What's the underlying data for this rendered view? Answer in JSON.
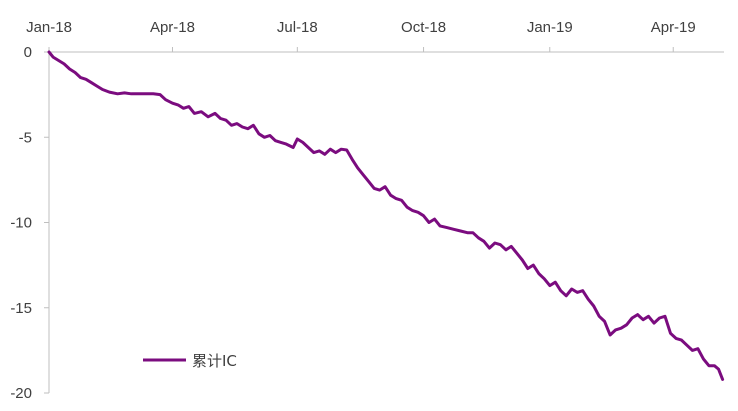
{
  "chart_data": {
    "type": "line",
    "title": "",
    "xlabel": "",
    "ylabel": "",
    "x_axis_position": "top",
    "x_tick_labels": [
      "Jan-18",
      "Apr-18",
      "Jul-18",
      "Oct-18",
      "Jan-19",
      "Apr-19"
    ],
    "x_tick_dates": [
      "2018-01-01",
      "2018-04-01",
      "2018-07-01",
      "2018-10-01",
      "2019-01-01",
      "2019-04-01"
    ],
    "xlim": [
      "2018-01-01",
      "2019-05-08"
    ],
    "y_ticks": [
      0,
      -5,
      -10,
      -15,
      -20
    ],
    "y_tick_labels": [
      "0",
      "-5",
      "-10",
      "-15",
      "-20"
    ],
    "ylim": [
      -20,
      0
    ],
    "grid": false,
    "legend_position": "bottom-left",
    "series": [
      {
        "name": "累计IC",
        "color": "#7b0c7f",
        "points": [
          [
            "2018-01-01",
            0.0
          ],
          [
            "2018-01-04",
            -0.3
          ],
          [
            "2018-01-08",
            -0.5
          ],
          [
            "2018-01-12",
            -0.7
          ],
          [
            "2018-01-16",
            -1.0
          ],
          [
            "2018-01-20",
            -1.2
          ],
          [
            "2018-01-24",
            -1.5
          ],
          [
            "2018-01-28",
            -1.6
          ],
          [
            "2018-02-01",
            -1.8
          ],
          [
            "2018-02-05",
            -2.0
          ],
          [
            "2018-02-09",
            -2.2
          ],
          [
            "2018-02-14",
            -2.35
          ],
          [
            "2018-02-20",
            -2.45
          ],
          [
            "2018-02-25",
            -2.4
          ],
          [
            "2018-03-02",
            -2.45
          ],
          [
            "2018-03-10",
            -2.45
          ],
          [
            "2018-03-18",
            -2.45
          ],
          [
            "2018-03-23",
            -2.5
          ],
          [
            "2018-03-27",
            -2.8
          ],
          [
            "2018-04-01",
            -3.0
          ],
          [
            "2018-04-05",
            -3.1
          ],
          [
            "2018-04-09",
            -3.3
          ],
          [
            "2018-04-13",
            -3.2
          ],
          [
            "2018-04-17",
            -3.6
          ],
          [
            "2018-04-22",
            -3.5
          ],
          [
            "2018-04-27",
            -3.8
          ],
          [
            "2018-05-02",
            -3.6
          ],
          [
            "2018-05-06",
            -3.9
          ],
          [
            "2018-05-10",
            -4.0
          ],
          [
            "2018-05-14",
            -4.3
          ],
          [
            "2018-05-18",
            -4.2
          ],
          [
            "2018-05-22",
            -4.4
          ],
          [
            "2018-05-26",
            -4.5
          ],
          [
            "2018-05-30",
            -4.3
          ],
          [
            "2018-06-03",
            -4.8
          ],
          [
            "2018-06-07",
            -5.0
          ],
          [
            "2018-06-11",
            -4.9
          ],
          [
            "2018-06-15",
            -5.2
          ],
          [
            "2018-06-19",
            -5.3
          ],
          [
            "2018-06-23",
            -5.4
          ],
          [
            "2018-06-28",
            -5.6
          ],
          [
            "2018-07-01",
            -5.1
          ],
          [
            "2018-07-05",
            -5.3
          ],
          [
            "2018-07-09",
            -5.6
          ],
          [
            "2018-07-13",
            -5.9
          ],
          [
            "2018-07-17",
            -5.8
          ],
          [
            "2018-07-21",
            -6.0
          ],
          [
            "2018-07-25",
            -5.7
          ],
          [
            "2018-07-29",
            -5.9
          ],
          [
            "2018-08-02",
            -5.7
          ],
          [
            "2018-08-06",
            -5.75
          ],
          [
            "2018-08-10",
            -6.3
          ],
          [
            "2018-08-14",
            -6.8
          ],
          [
            "2018-08-18",
            -7.2
          ],
          [
            "2018-08-22",
            -7.6
          ],
          [
            "2018-08-26",
            -8.0
          ],
          [
            "2018-08-30",
            -8.1
          ],
          [
            "2018-09-03",
            -7.9
          ],
          [
            "2018-09-07",
            -8.4
          ],
          [
            "2018-09-11",
            -8.6
          ],
          [
            "2018-09-15",
            -8.7
          ],
          [
            "2018-09-19",
            -9.1
          ],
          [
            "2018-09-23",
            -9.3
          ],
          [
            "2018-09-27",
            -9.4
          ],
          [
            "2018-10-01",
            -9.6
          ],
          [
            "2018-10-05",
            -10.0
          ],
          [
            "2018-10-09",
            -9.8
          ],
          [
            "2018-10-13",
            -10.2
          ],
          [
            "2018-10-18",
            -10.3
          ],
          [
            "2018-10-23",
            -10.4
          ],
          [
            "2018-10-28",
            -10.5
          ],
          [
            "2018-11-02",
            -10.6
          ],
          [
            "2018-11-06",
            -10.6
          ],
          [
            "2018-11-10",
            -10.9
          ],
          [
            "2018-11-14",
            -11.1
          ],
          [
            "2018-11-18",
            -11.5
          ],
          [
            "2018-11-22",
            -11.2
          ],
          [
            "2018-11-26",
            -11.3
          ],
          [
            "2018-11-30",
            -11.6
          ],
          [
            "2018-12-04",
            -11.4
          ],
          [
            "2018-12-08",
            -11.8
          ],
          [
            "2018-12-12",
            -12.2
          ],
          [
            "2018-12-16",
            -12.7
          ],
          [
            "2018-12-20",
            -12.5
          ],
          [
            "2018-12-24",
            -13.0
          ],
          [
            "2018-12-28",
            -13.3
          ],
          [
            "2019-01-01",
            -13.7
          ],
          [
            "2019-01-05",
            -13.5
          ],
          [
            "2019-01-09",
            -14.0
          ],
          [
            "2019-01-13",
            -14.3
          ],
          [
            "2019-01-17",
            -13.9
          ],
          [
            "2019-01-21",
            -14.1
          ],
          [
            "2019-01-25",
            -14.0
          ],
          [
            "2019-01-29",
            -14.5
          ],
          [
            "2019-02-02",
            -14.9
          ],
          [
            "2019-02-06",
            -15.5
          ],
          [
            "2019-02-10",
            -15.8
          ],
          [
            "2019-02-14",
            -16.6
          ],
          [
            "2019-02-18",
            -16.3
          ],
          [
            "2019-02-22",
            -16.2
          ],
          [
            "2019-02-26",
            -16.0
          ],
          [
            "2019-03-02",
            -15.6
          ],
          [
            "2019-03-06",
            -15.4
          ],
          [
            "2019-03-10",
            -15.7
          ],
          [
            "2019-03-14",
            -15.5
          ],
          [
            "2019-03-18",
            -15.9
          ],
          [
            "2019-03-22",
            -15.6
          ],
          [
            "2019-03-26",
            -15.5
          ],
          [
            "2019-03-30",
            -16.5
          ],
          [
            "2019-04-03",
            -16.8
          ],
          [
            "2019-04-07",
            -16.9
          ],
          [
            "2019-04-11",
            -17.2
          ],
          [
            "2019-04-15",
            -17.5
          ],
          [
            "2019-04-19",
            -17.4
          ],
          [
            "2019-04-23",
            -18.0
          ],
          [
            "2019-04-27",
            -18.4
          ],
          [
            "2019-05-01",
            -18.4
          ],
          [
            "2019-05-04",
            -18.6
          ],
          [
            "2019-05-07",
            -19.2
          ]
        ]
      }
    ]
  }
}
